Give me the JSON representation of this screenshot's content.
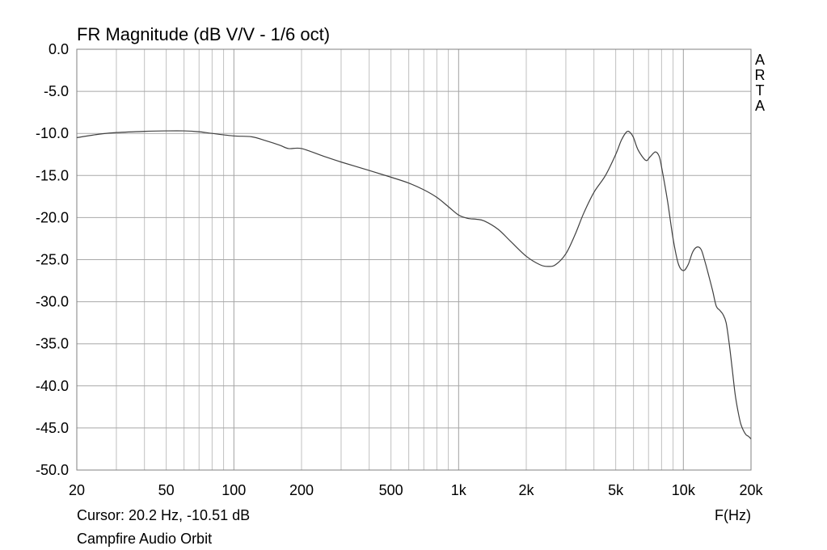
{
  "chart_data": {
    "type": "line",
    "title": "FR Magnitude (dB V/V - 1/6 oct)",
    "xlabel": "F(Hz)",
    "ylabel": "",
    "x_scale": "log",
    "xlim": [
      20,
      20000
    ],
    "ylim": [
      -50,
      0
    ],
    "grid": true,
    "x_ticks": [
      20,
      50,
      100,
      200,
      500,
      1000,
      2000,
      5000,
      10000,
      20000
    ],
    "x_tick_labels": [
      "20",
      "50",
      "100",
      "200",
      "500",
      "1k",
      "2k",
      "5k",
      "10k",
      "20k"
    ],
    "y_ticks": [
      0,
      -5,
      -10,
      -15,
      -20,
      -25,
      -30,
      -35,
      -40,
      -45,
      -50
    ],
    "y_tick_labels": [
      "0.0",
      "-5.0",
      "-10.0",
      "-15.0",
      "-20.0",
      "-25.0",
      "-30.0",
      "-35.0",
      "-40.0",
      "-45.0",
      "-50.0"
    ],
    "watermark": "ARTA",
    "cursor_text": "Cursor: 20.2 Hz, -10.51 dB",
    "caption": "Campfire Audio Orbit",
    "line_color": "#404040",
    "grid_color": "#c0c0c0",
    "series": [
      {
        "x": [
          20,
          25,
          30,
          40,
          50,
          60,
          70,
          80,
          100,
          120,
          140,
          160,
          175,
          200,
          250,
          300,
          400,
          500,
          600,
          700,
          800,
          900,
          1000,
          1100,
          1200,
          1300,
          1500,
          1700,
          2000,
          2300,
          2500,
          2700,
          3000,
          3300,
          3600,
          4000,
          4500,
          5000,
          5300,
          5600,
          5800,
          6000,
          6300,
          6800,
          7100,
          7500,
          7800,
          8000,
          8500,
          9000,
          9500,
          10000,
          10500,
          11000,
          11500,
          12000,
          12500,
          13000,
          13500,
          14000,
          14500,
          15000,
          15500,
          16000,
          16500,
          17000,
          17500,
          18000,
          18500,
          19000,
          19500,
          20000
        ],
        "y": [
          -10.5,
          -10.1,
          -9.9,
          -9.75,
          -9.7,
          -9.7,
          -9.8,
          -10.0,
          -10.3,
          -10.4,
          -10.9,
          -11.4,
          -11.8,
          -11.8,
          -12.7,
          -13.4,
          -14.4,
          -15.2,
          -15.9,
          -16.7,
          -17.6,
          -18.7,
          -19.7,
          -20.1,
          -20.2,
          -20.4,
          -21.4,
          -22.8,
          -24.6,
          -25.6,
          -25.8,
          -25.6,
          -24.3,
          -22.0,
          -19.5,
          -17.0,
          -15.0,
          -12.5,
          -10.8,
          -9.8,
          -9.9,
          -10.5,
          -12.0,
          -13.2,
          -12.8,
          -12.2,
          -12.7,
          -14.0,
          -18.0,
          -22.5,
          -25.5,
          -26.3,
          -25.6,
          -24.1,
          -23.5,
          -23.8,
          -25.3,
          -27.0,
          -28.7,
          -30.5,
          -31.0,
          -31.5,
          -32.5,
          -35.0,
          -38.0,
          -41.0,
          -43.0,
          -44.5,
          -45.3,
          -45.8,
          -46.0,
          -46.3
        ]
      }
    ]
  }
}
